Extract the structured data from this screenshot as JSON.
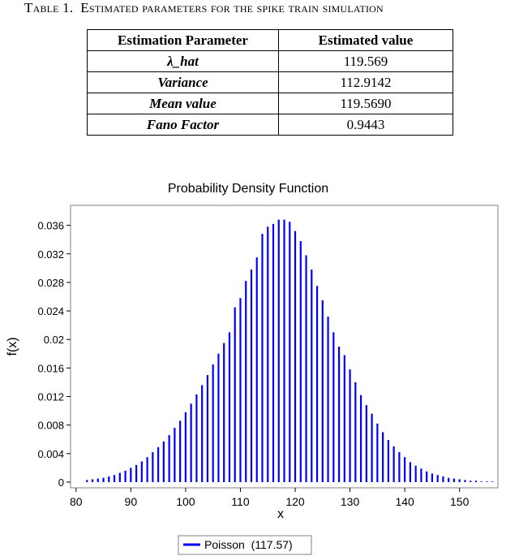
{
  "caption": {
    "label": "Table 1.",
    "text": "Estimated parameters for the spike train simulation"
  },
  "table": {
    "headers": [
      "Estimation Parameter",
      "Estimated value"
    ],
    "rows": [
      {
        "parameter": "λ_hat",
        "value": "119.569"
      },
      {
        "parameter": "Variance",
        "value": "112.9142"
      },
      {
        "parameter": "Mean value",
        "value": "119.5690"
      },
      {
        "parameter": "Fano Factor",
        "value": "0.9443"
      }
    ]
  },
  "chart_data": {
    "type": "bar",
    "title": "Probability Density Function",
    "xlabel": "x",
    "ylabel": "f(x)",
    "xlim": [
      79,
      157
    ],
    "ylim": [
      -0.0008,
      0.0388
    ],
    "xticks": [
      80,
      90,
      100,
      110,
      120,
      130,
      140,
      150
    ],
    "yticks": [
      0,
      0.004,
      0.008,
      0.012,
      0.016,
      0.02,
      0.024,
      0.028,
      0.032,
      0.036
    ],
    "ytick_labels": [
      "0",
      "0.004",
      "0.008",
      "0.012",
      "0.016",
      "0.02",
      "0.024",
      "0.028",
      "0.032",
      "0.036"
    ],
    "grid": false,
    "legend": "bottom-center",
    "color": "#0000ff",
    "series": [
      {
        "name": "Poisson  (117.57)",
        "x": [
          82,
          83,
          84,
          85,
          86,
          87,
          88,
          89,
          90,
          91,
          92,
          93,
          94,
          95,
          96,
          97,
          98,
          99,
          100,
          101,
          102,
          103,
          104,
          105,
          106,
          107,
          108,
          109,
          110,
          111,
          112,
          113,
          114,
          115,
          116,
          117,
          118,
          119,
          120,
          121,
          122,
          123,
          124,
          125,
          126,
          127,
          128,
          129,
          130,
          131,
          132,
          133,
          134,
          135,
          136,
          137,
          138,
          139,
          140,
          141,
          142,
          143,
          144,
          145,
          146,
          147,
          148,
          149,
          150,
          151,
          152,
          153,
          154,
          155,
          156
        ],
        "values": [
          0.0003,
          0.0004,
          0.0005,
          0.0006,
          0.0008,
          0.001,
          0.0013,
          0.0016,
          0.002,
          0.0024,
          0.0029,
          0.0035,
          0.0042,
          0.0049,
          0.0057,
          0.0066,
          0.0076,
          0.0086,
          0.0098,
          0.011,
          0.0123,
          0.0136,
          0.015,
          0.0165,
          0.018,
          0.0195,
          0.021,
          0.0245,
          0.0258,
          0.0282,
          0.0298,
          0.0315,
          0.0348,
          0.0358,
          0.0362,
          0.0368,
          0.0368,
          0.0365,
          0.0352,
          0.0338,
          0.0318,
          0.0298,
          0.0275,
          0.0255,
          0.0232,
          0.021,
          0.019,
          0.0178,
          0.0158,
          0.014,
          0.0122,
          0.0108,
          0.0096,
          0.0082,
          0.007,
          0.0059,
          0.005,
          0.0042,
          0.0035,
          0.0028,
          0.0023,
          0.0019,
          0.0015,
          0.0012,
          0.001,
          0.0008,
          0.0006,
          0.0005,
          0.0004,
          0.0003,
          0.0002,
          0.0002,
          0.0001,
          0.0001,
          0.0001
        ]
      }
    ]
  }
}
